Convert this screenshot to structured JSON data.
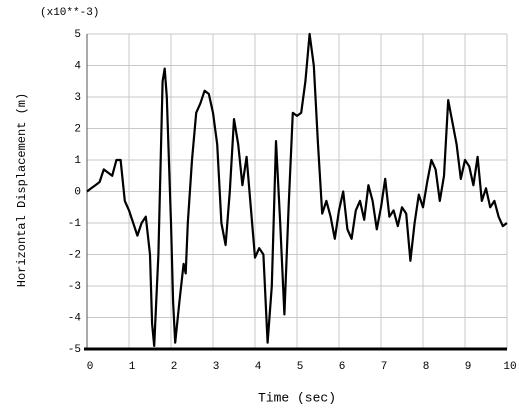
{
  "chart_data": {
    "type": "line",
    "multiplier_label": "(x10**-3)",
    "xlabel": "Time (sec)",
    "ylabel": "Horizontal Displacement (m)",
    "xlim": [
      0,
      10
    ],
    "xticks": [
      0,
      1,
      2,
      3,
      4,
      5,
      6,
      7,
      8,
      9,
      10
    ],
    "ylim": [
      -5,
      5
    ],
    "yticks": [
      -5,
      -4,
      -3,
      -2,
      -1,
      0,
      1,
      2,
      3,
      4,
      5
    ],
    "grid": true,
    "color": "#000000",
    "grid_color": "#c8c8c8",
    "x": [
      0,
      0.1,
      0.2,
      0.3,
      0.4,
      0.5,
      0.6,
      0.7,
      0.8,
      0.9,
      1.0,
      1.1,
      1.2,
      1.3,
      1.4,
      1.5,
      1.55,
      1.6,
      1.7,
      1.8,
      1.85,
      1.9,
      2.0,
      2.05,
      2.1,
      2.2,
      2.3,
      2.35,
      2.4,
      2.5,
      2.6,
      2.7,
      2.8,
      2.9,
      3.0,
      3.1,
      3.2,
      3.3,
      3.4,
      3.5,
      3.6,
      3.7,
      3.8,
      3.9,
      4.0,
      4.1,
      4.2,
      4.3,
      4.4,
      4.5,
      4.6,
      4.7,
      4.8,
      4.9,
      5.0,
      5.1,
      5.2,
      5.3,
      5.4,
      5.5,
      5.6,
      5.7,
      5.8,
      5.9,
      6.0,
      6.1,
      6.2,
      6.3,
      6.4,
      6.5,
      6.6,
      6.7,
      6.8,
      6.9,
      7.0,
      7.1,
      7.2,
      7.3,
      7.4,
      7.5,
      7.6,
      7.7,
      7.8,
      7.9,
      8.0,
      8.1,
      8.2,
      8.3,
      8.4,
      8.5,
      8.6,
      8.7,
      8.8,
      8.9,
      9.0,
      9.1,
      9.2,
      9.3,
      9.4,
      9.5,
      9.6,
      9.7,
      9.8,
      9.9,
      10.0
    ],
    "y": [
      0,
      0.1,
      0.2,
      0.3,
      0.7,
      0.6,
      0.5,
      1.0,
      1.0,
      -0.3,
      -0.6,
      -1.0,
      -1.4,
      -1.0,
      -0.8,
      -2.0,
      -4.2,
      -4.9,
      -2.0,
      3.5,
      3.9,
      3.0,
      -1.0,
      -3.5,
      -4.8,
      -3.5,
      -2.3,
      -2.6,
      -1.0,
      1.0,
      2.5,
      2.8,
      3.2,
      3.1,
      2.5,
      1.5,
      -1.0,
      -1.7,
      0,
      2.3,
      1.5,
      0.2,
      1.1,
      -0.5,
      -2.1,
      -1.8,
      -2.0,
      -4.8,
      -3.0,
      1.6,
      -1.0,
      -3.9,
      -0.5,
      2.5,
      2.4,
      2.5,
      3.5,
      5.0,
      4.0,
      1.5,
      -0.7,
      -0.3,
      -0.8,
      -1.5,
      -0.6,
      0,
      -1.2,
      -1.5,
      -0.6,
      -0.3,
      -0.9,
      0.2,
      -0.3,
      -1.2,
      -0.5,
      0.4,
      -0.8,
      -0.6,
      -1.1,
      -0.5,
      -0.7,
      -2.2,
      -1.0,
      -0.1,
      -0.5,
      0.3,
      1.0,
      0.7,
      -0.3,
      0.5,
      2.9,
      2.2,
      1.5,
      0.4,
      1.0,
      0.8,
      0.2,
      1.1,
      -0.3,
      0.1,
      -0.5,
      -0.3,
      -0.8,
      -1.1,
      -1.0
    ]
  }
}
